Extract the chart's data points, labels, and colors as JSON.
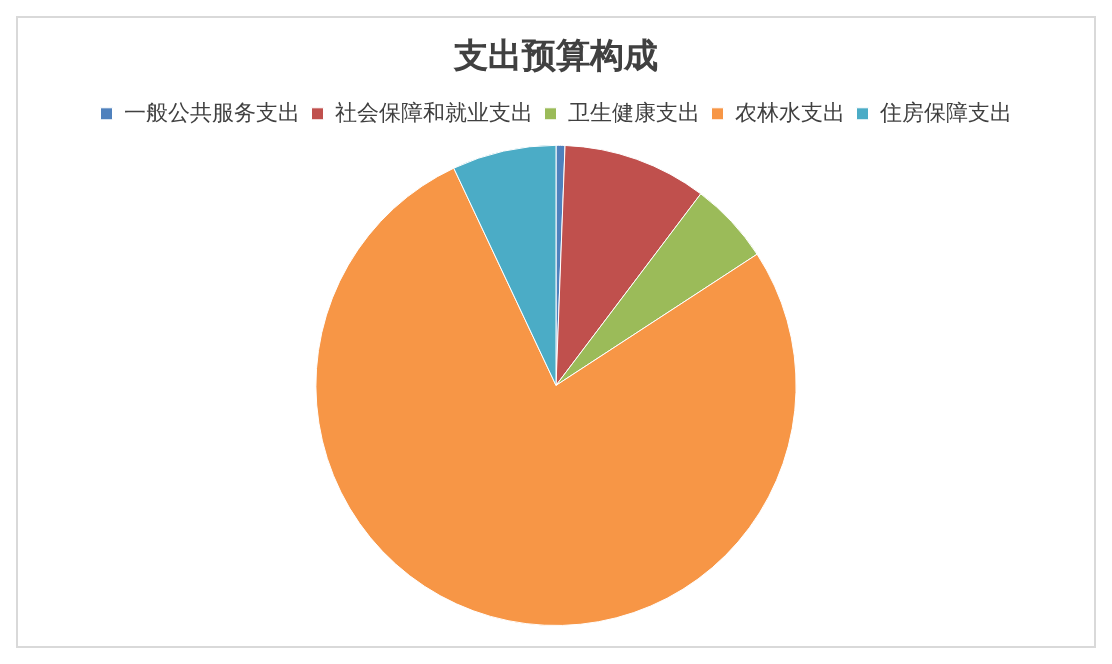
{
  "chart_data": {
    "type": "pie",
    "title": "支出预算构成",
    "categories": [
      "一般公共服务支出",
      "社会保障和就业支出",
      "卫生健康支出",
      "农林水支出",
      "住房保障支出"
    ],
    "values": [
      0.6,
      9.7,
      5.5,
      77.2,
      7.0
    ],
    "colors": [
      "#4f81bd",
      "#c0504d",
      "#9bbb59",
      "#f79646",
      "#4bacc6"
    ],
    "legend": "top"
  }
}
